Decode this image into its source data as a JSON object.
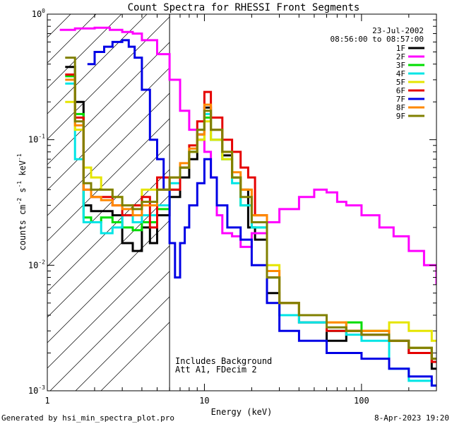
{
  "chart_data": {
    "type": "line",
    "title": "Count Spectra for RHESSI Front Segments",
    "xlabel": "Energy (keV)",
    "ylabel_parts": {
      "main": "counts cm",
      "exp1": "-2",
      "mid": " s",
      "exp2": "-1",
      "end": " keV",
      "exp3": "-1"
    },
    "x_scale": "log",
    "y_scale": "log",
    "xlim": [
      1.0,
      300.0
    ],
    "ylim": [
      0.001,
      1.0
    ],
    "x_ticks": [
      {
        "value": 1,
        "label": "1"
      },
      {
        "value": 10,
        "label": "10"
      },
      {
        "value": 100,
        "label": "100"
      }
    ],
    "y_ticks": [
      {
        "value": 1,
        "base": "10",
        "exp": "0"
      },
      {
        "value": 0.1,
        "base": "10",
        "exp": "-1"
      },
      {
        "value": 0.01,
        "base": "10",
        "exp": "-2"
      },
      {
        "value": 0.001,
        "base": "10",
        "exp": "-3"
      }
    ],
    "date": "23-Jul-2002",
    "time_range": "08:56:00 to 08:57:00",
    "legend_position": "top-right",
    "hatched_region": [
      1.0,
      6.0
    ],
    "annotations": [
      "Includes Background",
      "Att A1, FDecim 2"
    ],
    "series": [
      {
        "name": "1F",
        "color": "#000000",
        "points": [
          [
            1.3,
            0.38
          ],
          [
            1.5,
            0.2
          ],
          [
            1.7,
            0.03
          ],
          [
            1.9,
            0.027
          ],
          [
            2.2,
            0.027
          ],
          [
            2.6,
            0.025
          ],
          [
            3,
            0.015
          ],
          [
            3.5,
            0.013
          ],
          [
            4,
            0.02
          ],
          [
            4.5,
            0.015
          ],
          [
            5,
            0.025
          ],
          [
            6,
            0.035
          ],
          [
            7,
            0.05
          ],
          [
            8,
            0.07
          ],
          [
            9,
            0.11
          ],
          [
            10,
            0.18
          ],
          [
            11,
            0.12
          ],
          [
            13,
            0.075
          ],
          [
            15,
            0.05
          ],
          [
            17,
            0.04
          ],
          [
            19,
            0.02
          ],
          [
            21,
            0.016
          ],
          [
            25,
            0.006
          ],
          [
            30,
            0.004
          ],
          [
            40,
            0.0035
          ],
          [
            60,
            0.0025
          ],
          [
            80,
            0.003
          ],
          [
            100,
            0.0028
          ],
          [
            150,
            0.0025
          ],
          [
            200,
            0.002
          ],
          [
            280,
            0.0015
          ]
        ]
      },
      {
        "name": "2F",
        "color": "#ff00ff",
        "points": [
          [
            1.2,
            0.75
          ],
          [
            1.5,
            0.77
          ],
          [
            2,
            0.78
          ],
          [
            2.5,
            0.75
          ],
          [
            3,
            0.72
          ],
          [
            3.5,
            0.7
          ],
          [
            4,
            0.62
          ],
          [
            5,
            0.48
          ],
          [
            6,
            0.3
          ],
          [
            7,
            0.17
          ],
          [
            8,
            0.12
          ],
          [
            9,
            0.1
          ],
          [
            10,
            0.08
          ],
          [
            11,
            0.05
          ],
          [
            12,
            0.025
          ],
          [
            13,
            0.018
          ],
          [
            15,
            0.017
          ],
          [
            17,
            0.014
          ],
          [
            20,
            0.018
          ],
          [
            25,
            0.022
          ],
          [
            30,
            0.028
          ],
          [
            40,
            0.035
          ],
          [
            50,
            0.04
          ],
          [
            60,
            0.038
          ],
          [
            70,
            0.032
          ],
          [
            80,
            0.03
          ],
          [
            100,
            0.025
          ],
          [
            130,
            0.02
          ],
          [
            160,
            0.017
          ],
          [
            200,
            0.013
          ],
          [
            250,
            0.01
          ],
          [
            300,
            0.007
          ]
        ]
      },
      {
        "name": "3F",
        "color": "#00dd00",
        "points": [
          [
            1.3,
            0.32
          ],
          [
            1.5,
            0.16
          ],
          [
            1.7,
            0.024
          ],
          [
            1.9,
            0.022
          ],
          [
            2.2,
            0.024
          ],
          [
            2.6,
            0.022
          ],
          [
            3,
            0.02
          ],
          [
            3.5,
            0.019
          ],
          [
            4,
            0.022
          ],
          [
            5,
            0.028
          ],
          [
            6,
            0.04
          ],
          [
            7,
            0.06
          ],
          [
            8,
            0.08
          ],
          [
            9,
            0.1
          ],
          [
            10,
            0.15
          ],
          [
            11,
            0.1
          ],
          [
            13,
            0.07
          ],
          [
            15,
            0.05
          ],
          [
            17,
            0.03
          ],
          [
            20,
            0.02
          ],
          [
            25,
            0.008
          ],
          [
            30,
            0.005
          ],
          [
            40,
            0.004
          ],
          [
            60,
            0.003
          ],
          [
            80,
            0.0035
          ],
          [
            100,
            0.003
          ],
          [
            150,
            0.0025
          ],
          [
            200,
            0.0022
          ],
          [
            280,
            0.0018
          ]
        ]
      },
      {
        "name": "4F",
        "color": "#00e5e5",
        "points": [
          [
            1.3,
            0.28
          ],
          [
            1.5,
            0.07
          ],
          [
            1.7,
            0.022
          ],
          [
            1.9,
            0.022
          ],
          [
            2.2,
            0.018
          ],
          [
            2.6,
            0.02
          ],
          [
            3,
            0.025
          ],
          [
            3.5,
            0.022
          ],
          [
            4,
            0.025
          ],
          [
            5,
            0.03
          ],
          [
            6,
            0.045
          ],
          [
            7,
            0.06
          ],
          [
            8,
            0.08
          ],
          [
            9,
            0.12
          ],
          [
            10,
            0.16
          ],
          [
            11,
            0.1
          ],
          [
            13,
            0.07
          ],
          [
            15,
            0.045
          ],
          [
            17,
            0.03
          ],
          [
            20,
            0.02
          ],
          [
            25,
            0.008
          ],
          [
            30,
            0.004
          ],
          [
            40,
            0.0035
          ],
          [
            60,
            0.003
          ],
          [
            80,
            0.0028
          ],
          [
            100,
            0.0025
          ],
          [
            150,
            0.0015
          ],
          [
            200,
            0.0012
          ],
          [
            280,
            0.0011
          ]
        ]
      },
      {
        "name": "5F",
        "color": "#e5e500",
        "points": [
          [
            1.3,
            0.2
          ],
          [
            1.5,
            0.12
          ],
          [
            1.7,
            0.06
          ],
          [
            1.9,
            0.05
          ],
          [
            2.2,
            0.04
          ],
          [
            2.6,
            0.035
          ],
          [
            3,
            0.03
          ],
          [
            3.5,
            0.03
          ],
          [
            4,
            0.04
          ],
          [
            5,
            0.04
          ],
          [
            6,
            0.05
          ],
          [
            7,
            0.06
          ],
          [
            8,
            0.08
          ],
          [
            9,
            0.1
          ],
          [
            10,
            0.14
          ],
          [
            11,
            0.1
          ],
          [
            13,
            0.07
          ],
          [
            15,
            0.05
          ],
          [
            17,
            0.04
          ],
          [
            20,
            0.025
          ],
          [
            25,
            0.01
          ],
          [
            30,
            0.005
          ],
          [
            40,
            0.004
          ],
          [
            60,
            0.0035
          ],
          [
            80,
            0.003
          ],
          [
            100,
            0.003
          ],
          [
            150,
            0.0035
          ],
          [
            200,
            0.003
          ],
          [
            280,
            0.0025
          ]
        ]
      },
      {
        "name": "6F",
        "color": "#e50000",
        "points": [
          [
            1.3,
            0.33
          ],
          [
            1.5,
            0.15
          ],
          [
            1.7,
            0.04
          ],
          [
            1.9,
            0.035
          ],
          [
            2.2,
            0.035
          ],
          [
            2.6,
            0.03
          ],
          [
            3,
            0.025
          ],
          [
            3.5,
            0.03
          ],
          [
            4,
            0.035
          ],
          [
            4.5,
            0.02
          ],
          [
            5,
            0.05
          ],
          [
            6,
            0.04
          ],
          [
            7,
            0.06
          ],
          [
            8,
            0.09
          ],
          [
            9,
            0.14
          ],
          [
            10,
            0.24
          ],
          [
            11,
            0.15
          ],
          [
            13,
            0.1
          ],
          [
            15,
            0.08
          ],
          [
            17,
            0.06
          ],
          [
            19,
            0.05
          ],
          [
            21,
            0.025
          ],
          [
            25,
            0.008
          ],
          [
            30,
            0.005
          ],
          [
            40,
            0.004
          ],
          [
            60,
            0.003
          ],
          [
            80,
            0.003
          ],
          [
            100,
            0.0028
          ],
          [
            150,
            0.0025
          ],
          [
            200,
            0.002
          ],
          [
            280,
            0.0017
          ]
        ]
      },
      {
        "name": "7F",
        "color": "#0000e5",
        "points": [
          [
            1.8,
            0.4
          ],
          [
            2,
            0.5
          ],
          [
            2.3,
            0.55
          ],
          [
            2.6,
            0.6
          ],
          [
            3,
            0.62
          ],
          [
            3.3,
            0.55
          ],
          [
            3.6,
            0.45
          ],
          [
            4,
            0.25
          ],
          [
            4.5,
            0.1
          ],
          [
            5,
            0.07
          ],
          [
            5.5,
            0.04
          ],
          [
            6,
            0.015
          ],
          [
            6.5,
            0.008
          ],
          [
            7,
            0.015
          ],
          [
            7.5,
            0.02
          ],
          [
            8,
            0.03
          ],
          [
            9,
            0.045
          ],
          [
            10,
            0.07
          ],
          [
            11,
            0.05
          ],
          [
            12,
            0.03
          ],
          [
            14,
            0.02
          ],
          [
            17,
            0.016
          ],
          [
            20,
            0.01
          ],
          [
            25,
            0.005
          ],
          [
            30,
            0.003
          ],
          [
            40,
            0.0025
          ],
          [
            60,
            0.002
          ],
          [
            80,
            0.002
          ],
          [
            100,
            0.0018
          ],
          [
            150,
            0.0015
          ],
          [
            200,
            0.0013
          ],
          [
            280,
            0.0011
          ]
        ]
      },
      {
        "name": "8F",
        "color": "#ff8800",
        "points": [
          [
            1.3,
            0.3
          ],
          [
            1.5,
            0.13
          ],
          [
            1.7,
            0.04
          ],
          [
            1.9,
            0.035
          ],
          [
            2.2,
            0.033
          ],
          [
            2.6,
            0.03
          ],
          [
            3,
            0.028
          ],
          [
            3.5,
            0.025
          ],
          [
            4,
            0.03
          ],
          [
            5,
            0.04
          ],
          [
            6,
            0.05
          ],
          [
            7,
            0.065
          ],
          [
            8,
            0.085
          ],
          [
            9,
            0.11
          ],
          [
            10,
            0.19
          ],
          [
            11,
            0.12
          ],
          [
            13,
            0.08
          ],
          [
            15,
            0.055
          ],
          [
            17,
            0.04
          ],
          [
            20,
            0.025
          ],
          [
            25,
            0.009
          ],
          [
            30,
            0.005
          ],
          [
            40,
            0.004
          ],
          [
            60,
            0.0035
          ],
          [
            80,
            0.003
          ],
          [
            100,
            0.003
          ],
          [
            150,
            0.0025
          ],
          [
            200,
            0.0022
          ],
          [
            280,
            0.0018
          ]
        ]
      },
      {
        "name": "9F",
        "color": "#808000",
        "points": [
          [
            1.3,
            0.45
          ],
          [
            1.5,
            0.14
          ],
          [
            1.7,
            0.045
          ],
          [
            1.9,
            0.04
          ],
          [
            2.2,
            0.04
          ],
          [
            2.6,
            0.035
          ],
          [
            3,
            0.03
          ],
          [
            3.5,
            0.028
          ],
          [
            4,
            0.032
          ],
          [
            5,
            0.04
          ],
          [
            6,
            0.05
          ],
          [
            7,
            0.06
          ],
          [
            8,
            0.08
          ],
          [
            9,
            0.12
          ],
          [
            10,
            0.17
          ],
          [
            11,
            0.12
          ],
          [
            13,
            0.08
          ],
          [
            15,
            0.05
          ],
          [
            17,
            0.035
          ],
          [
            20,
            0.022
          ],
          [
            25,
            0.008
          ],
          [
            30,
            0.005
          ],
          [
            40,
            0.004
          ],
          [
            60,
            0.0032
          ],
          [
            80,
            0.003
          ],
          [
            100,
            0.0028
          ],
          [
            150,
            0.0025
          ],
          [
            200,
            0.0022
          ],
          [
            280,
            0.0018
          ]
        ]
      }
    ]
  },
  "footer": {
    "generated_by": "Generated by hsi_min_spectra_plot.pro",
    "timestamp": "8-Apr-2023 19:20"
  }
}
